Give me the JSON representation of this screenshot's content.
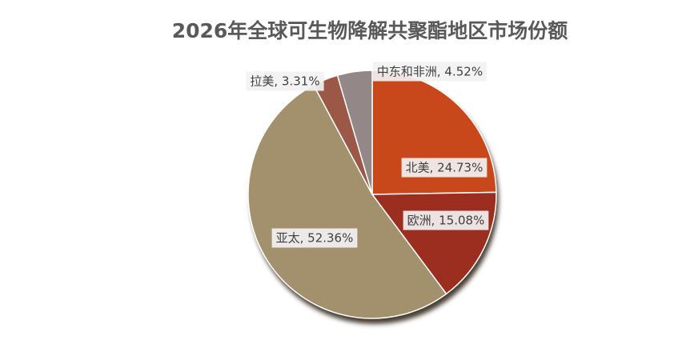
{
  "chart_data": {
    "type": "pie",
    "title": "2026年全球可生物降解共聚酯地区市场份额",
    "values": [
      24.73,
      15.08,
      52.36,
      3.31,
      4.52
    ],
    "value_labels": [
      "北美, 24.73%",
      "欧洲, 15.08%",
      "亚太, 52.36%",
      "拉美, 3.31%",
      "中东和非洲, 4.52%"
    ],
    "colors": [
      "#c9481b",
      "#9b2e1f",
      "#a3916e",
      "#9c5847",
      "#938787"
    ]
  }
}
